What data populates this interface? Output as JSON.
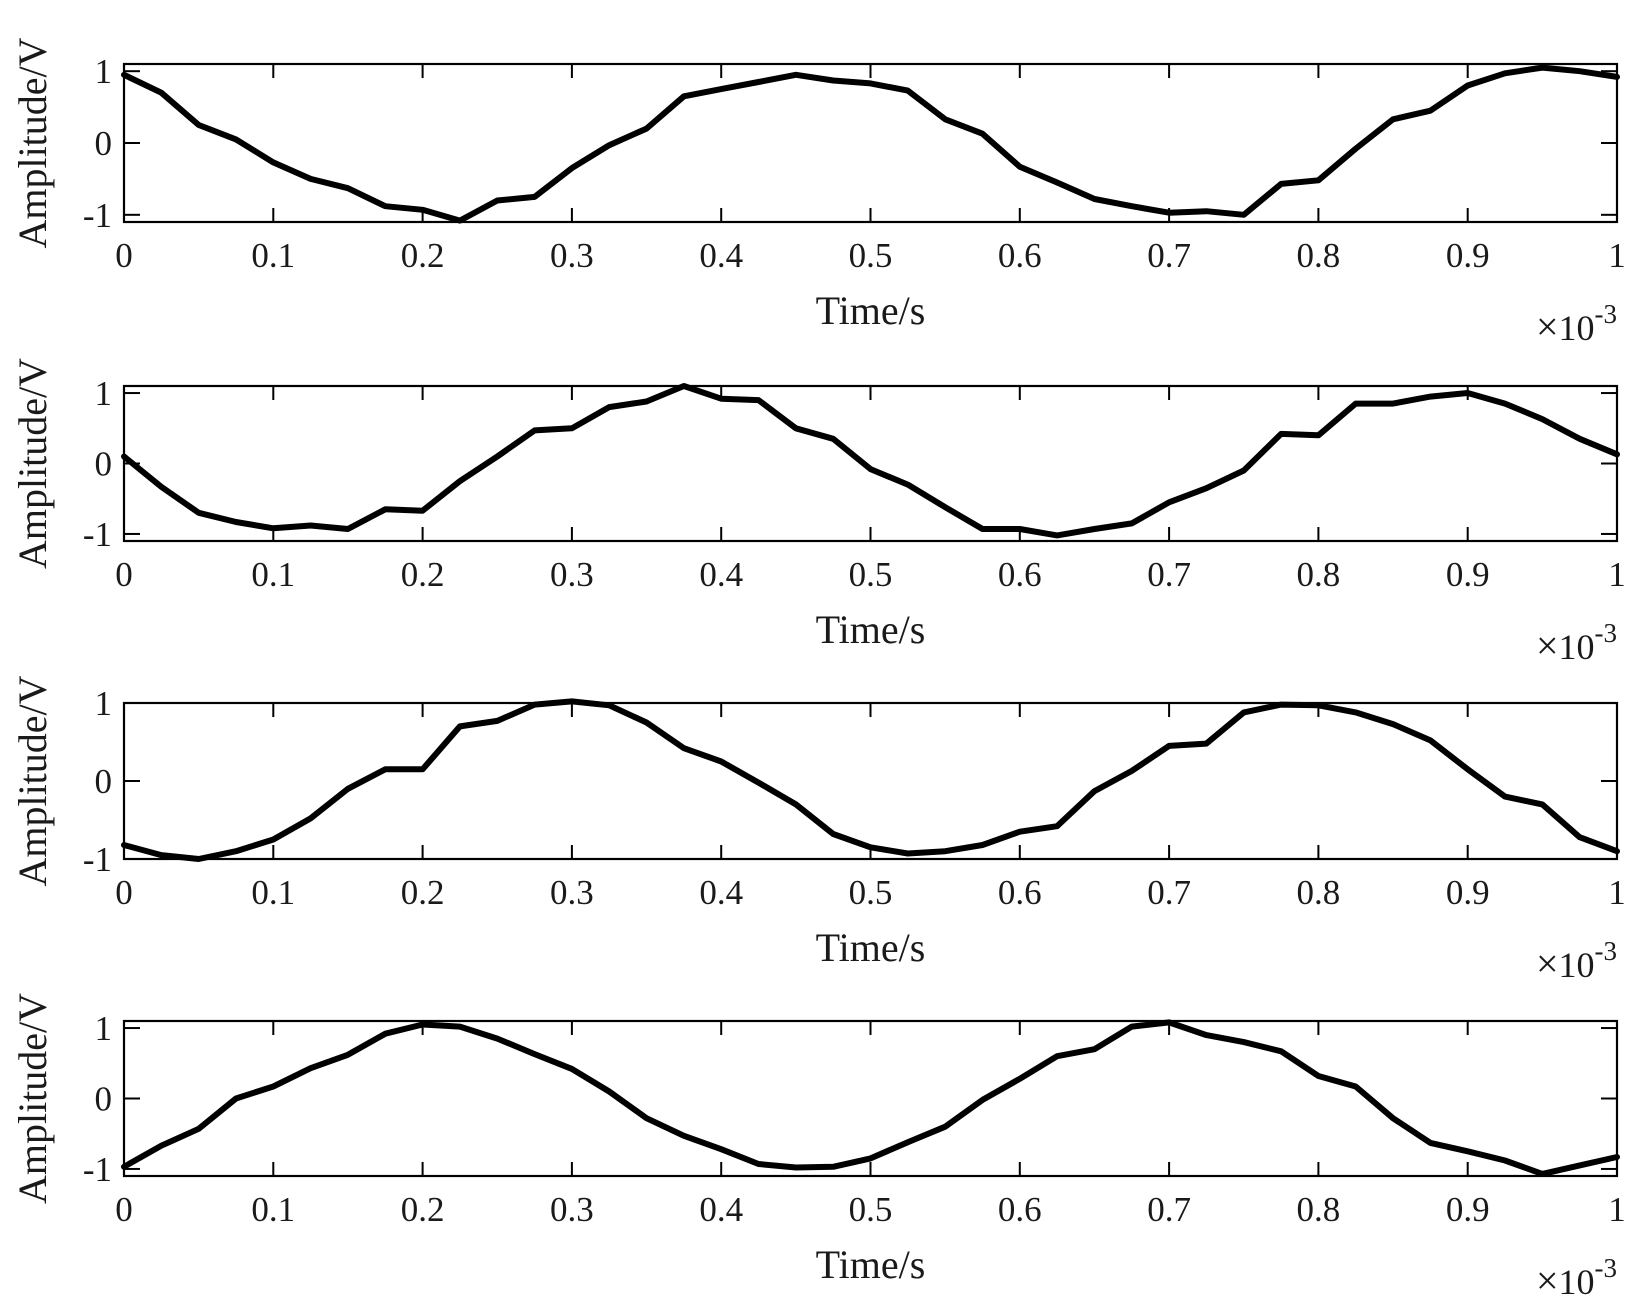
{
  "chart_data": [
    {
      "type": "line",
      "xlabel": "Time/s",
      "ylabel": "Amplitude/V",
      "x_exponent": {
        "times": "×",
        "base": "10",
        "power": "-3"
      },
      "xlim": [
        0,
        1
      ],
      "ylim": [
        -1.1,
        1.1
      ],
      "xticks": [
        "0",
        "0.1",
        "0.2",
        "0.3",
        "0.4",
        "0.5",
        "0.6",
        "0.7",
        "0.8",
        "0.9",
        "1"
      ],
      "yticks": [
        "-1",
        "0",
        "1"
      ],
      "grid": false,
      "line_color": "#000000",
      "series": [
        {
          "x": [
            0,
            0.025,
            0.05,
            0.075,
            0.1,
            0.125,
            0.15,
            0.175,
            0.2,
            0.225,
            0.25,
            0.275,
            0.3,
            0.325,
            0.35,
            0.375,
            0.4,
            0.425,
            0.45,
            0.475,
            0.5,
            0.525,
            0.55,
            0.575,
            0.6,
            0.625,
            0.65,
            0.675,
            0.7,
            0.725,
            0.75,
            0.775,
            0.8,
            0.825,
            0.85,
            0.875,
            0.9,
            0.925,
            0.95,
            0.975,
            1
          ],
          "y": [
            0.95,
            0.7,
            0.25,
            0.05,
            -0.27,
            -0.5,
            -0.63,
            -0.88,
            -0.93,
            -1.08,
            -0.8,
            -0.75,
            -0.35,
            -0.03,
            0.2,
            0.65,
            0.75,
            0.85,
            0.95,
            0.87,
            0.83,
            0.73,
            0.33,
            0.13,
            -0.33,
            -0.55,
            -0.78,
            -0.88,
            -0.97,
            -0.95,
            -1.0,
            -0.57,
            -0.52,
            -0.08,
            0.33,
            0.45,
            0.8,
            0.97,
            1.05,
            1.0,
            0.92
          ]
        }
      ]
    },
    {
      "type": "line",
      "xlabel": "Time/s",
      "ylabel": "Amplitude/V",
      "x_exponent": {
        "times": "×",
        "base": "10",
        "power": "-3"
      },
      "xlim": [
        0,
        1
      ],
      "ylim": [
        -1.1,
        1.1
      ],
      "xticks": [
        "0",
        "0.1",
        "0.2",
        "0.3",
        "0.4",
        "0.5",
        "0.6",
        "0.7",
        "0.8",
        "0.9",
        "1"
      ],
      "yticks": [
        "-1",
        "0",
        "1"
      ],
      "grid": false,
      "line_color": "#000000",
      "series": [
        {
          "x": [
            0,
            0.025,
            0.05,
            0.075,
            0.1,
            0.125,
            0.15,
            0.175,
            0.2,
            0.225,
            0.25,
            0.275,
            0.3,
            0.325,
            0.35,
            0.375,
            0.4,
            0.425,
            0.45,
            0.475,
            0.5,
            0.525,
            0.55,
            0.575,
            0.6,
            0.625,
            0.65,
            0.675,
            0.7,
            0.725,
            0.75,
            0.775,
            0.8,
            0.825,
            0.85,
            0.875,
            0.9,
            0.925,
            0.95,
            0.975,
            1
          ],
          "y": [
            0.1,
            -0.33,
            -0.7,
            -0.83,
            -0.92,
            -0.88,
            -0.93,
            -0.65,
            -0.67,
            -0.25,
            0.1,
            0.47,
            0.5,
            0.8,
            0.88,
            1.1,
            0.92,
            0.9,
            0.5,
            0.35,
            -0.08,
            -0.3,
            -0.62,
            -0.93,
            -0.93,
            -1.02,
            -0.93,
            -0.85,
            -0.55,
            -0.35,
            -0.1,
            0.42,
            0.4,
            0.85,
            0.85,
            0.95,
            1.0,
            0.85,
            0.63,
            0.35,
            0.13
          ]
        }
      ]
    },
    {
      "type": "line",
      "xlabel": "Time/s",
      "ylabel": "Amplitude/V",
      "x_exponent": {
        "times": "×",
        "base": "10",
        "power": "-3"
      },
      "xlim": [
        0,
        1
      ],
      "ylim": [
        -1.0,
        1.0
      ],
      "xticks": [
        "0",
        "0.1",
        "0.2",
        "0.3",
        "0.4",
        "0.5",
        "0.6",
        "0.7",
        "0.8",
        "0.9",
        "1"
      ],
      "yticks": [
        "-1",
        "0",
        "1"
      ],
      "grid": false,
      "line_color": "#000000",
      "series": [
        {
          "x": [
            0,
            0.025,
            0.05,
            0.075,
            0.1,
            0.125,
            0.15,
            0.175,
            0.2,
            0.225,
            0.25,
            0.275,
            0.3,
            0.325,
            0.35,
            0.375,
            0.4,
            0.425,
            0.45,
            0.475,
            0.5,
            0.525,
            0.55,
            0.575,
            0.6,
            0.625,
            0.65,
            0.675,
            0.7,
            0.725,
            0.75,
            0.775,
            0.8,
            0.825,
            0.85,
            0.875,
            0.9,
            0.925,
            0.95,
            0.975,
            1
          ],
          "y": [
            -0.82,
            -0.95,
            -1.0,
            -0.9,
            -0.75,
            -0.48,
            -0.1,
            0.15,
            0.15,
            0.7,
            0.77,
            0.98,
            1.02,
            0.97,
            0.75,
            0.42,
            0.25,
            -0.02,
            -0.3,
            -0.68,
            -0.85,
            -0.93,
            -0.9,
            -0.82,
            -0.65,
            -0.58,
            -0.13,
            0.13,
            0.45,
            0.48,
            0.88,
            0.98,
            0.97,
            0.88,
            0.73,
            0.52,
            0.15,
            -0.2,
            -0.3,
            -0.72,
            -0.9
          ]
        }
      ]
    },
    {
      "type": "line",
      "xlabel": "Time/s",
      "ylabel": "Amplitude/V",
      "x_exponent": {
        "times": "×",
        "base": "10",
        "power": "-3"
      },
      "xlim": [
        0,
        1
      ],
      "ylim": [
        -1.1,
        1.1
      ],
      "xticks": [
        "0",
        "0.1",
        "0.2",
        "0.3",
        "0.4",
        "0.5",
        "0.6",
        "0.7",
        "0.8",
        "0.9",
        "1"
      ],
      "yticks": [
        "-1",
        "0",
        "1"
      ],
      "grid": false,
      "line_color": "#000000",
      "series": [
        {
          "x": [
            0,
            0.025,
            0.05,
            0.075,
            0.1,
            0.125,
            0.15,
            0.175,
            0.2,
            0.225,
            0.25,
            0.275,
            0.3,
            0.325,
            0.35,
            0.375,
            0.4,
            0.425,
            0.45,
            0.475,
            0.5,
            0.525,
            0.55,
            0.575,
            0.6,
            0.625,
            0.65,
            0.675,
            0.7,
            0.725,
            0.75,
            0.775,
            0.8,
            0.825,
            0.85,
            0.875,
            0.9,
            0.925,
            0.95,
            0.975,
            1
          ],
          "y": [
            -0.97,
            -0.67,
            -0.43,
            0.0,
            0.17,
            0.43,
            0.62,
            0.92,
            1.05,
            1.02,
            0.85,
            0.63,
            0.42,
            0.1,
            -0.28,
            -0.53,
            -0.72,
            -0.93,
            -0.98,
            -0.97,
            -0.85,
            -0.62,
            -0.4,
            -0.02,
            0.28,
            0.6,
            0.7,
            1.02,
            1.08,
            0.9,
            0.8,
            0.67,
            0.32,
            0.17,
            -0.28,
            -0.63,
            -0.75,
            -0.88,
            -1.07,
            -0.95,
            -0.83
          ]
        }
      ]
    }
  ]
}
